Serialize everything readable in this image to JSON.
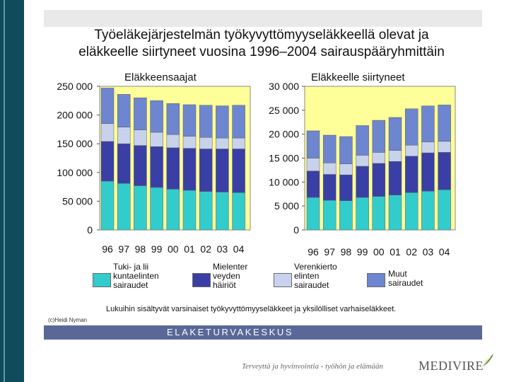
{
  "slide": {
    "title_line1": "Työeläkejärjestelmän työkyvyttömyyseläkkeellä olevat ja",
    "title_line2": "eläkkeelle siirtyneet vuosina 1996–2004 sairauspääryhmittäin",
    "note": "Lukuihin sisältyvät varsinaiset työkyvyttömyyseläkkeet ja yksilölliset  varhaiseläkkeet.",
    "credit": "(c)Heidi Nyman",
    "footer_bar": "ELAKETURVAKESKUS",
    "tagline": "Terveyttä ja hyvinvointia - työhön ja elämään",
    "logo": "MEDIVIRE"
  },
  "legend": [
    {
      "label_lines": [
        "Tuki- ja lii",
        "kuntaelinten",
        "sairaudet"
      ],
      "color": "#33cccc"
    },
    {
      "label_lines": [
        "Mielenter",
        "veyden",
        "häiriöt"
      ],
      "color": "#3a3fa6"
    },
    {
      "label_lines": [
        "Verenkierto",
        "elinten",
        "sairaudet"
      ],
      "color": "#c8d2ec"
    },
    {
      "label_lines": [
        "Muut",
        "sairaudet"
      ],
      "color": "#6e86d0"
    }
  ],
  "chart_data": [
    {
      "type": "bar",
      "stacked": true,
      "title": "Eläkkeensaajat",
      "categories": [
        "96",
        "97",
        "98",
        "99",
        "00",
        "01",
        "02",
        "03",
        "04"
      ],
      "ylim": [
        0,
        250000
      ],
      "y_ticks": [
        "0",
        "50 000",
        "100 000",
        "150 000",
        "200 000",
        "250 000"
      ],
      "plot_background": "#ffff99",
      "series": [
        {
          "name": "Tuki- ja liikuntaelinten sairaudet",
          "color": "#33cccc",
          "values": [
            85000,
            81000,
            77000,
            74000,
            71000,
            69000,
            67000,
            66000,
            65000
          ]
        },
        {
          "name": "Mielenterveyden häiriöt",
          "color": "#3a3fa6",
          "values": [
            69000,
            69000,
            70000,
            71000,
            72000,
            73000,
            74000,
            75000,
            76000
          ]
        },
        {
          "name": "Verenkiertoelinten sairaudet",
          "color": "#c8d2ec",
          "values": [
            31000,
            29000,
            27000,
            25000,
            23000,
            21000,
            20000,
            19000,
            19000
          ]
        },
        {
          "name": "Muut sairaudet",
          "color": "#6e86d0",
          "values": [
            62000,
            57000,
            56000,
            55000,
            54000,
            55000,
            56000,
            56000,
            57000
          ]
        }
      ]
    },
    {
      "type": "bar",
      "stacked": true,
      "title": "Eläkkeelle siirtyneet",
      "categories": [
        "96",
        "97",
        "98",
        "99",
        "00",
        "01",
        "02",
        "03",
        "04"
      ],
      "ylim": [
        0,
        30000
      ],
      "y_ticks": [
        "0",
        "5 000",
        "10 000",
        "15 000",
        "20 000",
        "25 000",
        "30 000"
      ],
      "plot_background": "#ffff99",
      "series": [
        {
          "name": "Tuki- ja liikuntaelinten sairaudet",
          "color": "#33cccc",
          "values": [
            6800,
            6200,
            6100,
            6800,
            7000,
            7300,
            7800,
            8100,
            8400
          ]
        },
        {
          "name": "Mielenterveyden häiriöt",
          "color": "#3a3fa6",
          "values": [
            5500,
            5400,
            5400,
            6500,
            6900,
            7000,
            7600,
            8000,
            7800
          ]
        },
        {
          "name": "Verenkiertoelinten sairaudet",
          "color": "#c8d2ec",
          "values": [
            2700,
            2400,
            2300,
            2300,
            2300,
            2300,
            2300,
            2300,
            2300
          ]
        },
        {
          "name": "Muut sairaudet",
          "color": "#6e86d0",
          "values": [
            5700,
            5800,
            5700,
            6200,
            6700,
            6900,
            7600,
            7500,
            7600
          ]
        }
      ]
    }
  ]
}
